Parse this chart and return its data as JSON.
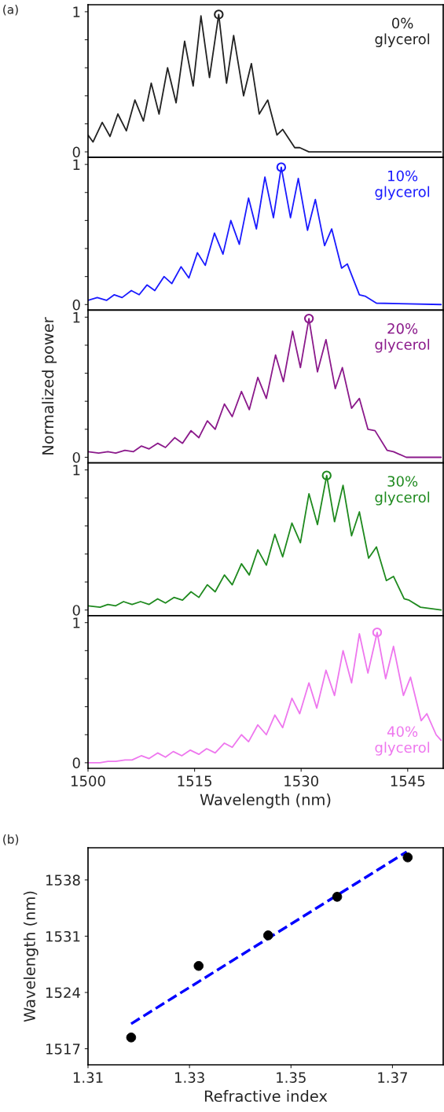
{
  "chart_data": [
    {
      "type": "line",
      "annotations": [
        "(a)"
      ],
      "xlim": [
        1500,
        1550
      ],
      "ylim": [
        -0.04,
        1.05
      ],
      "yticks": [
        0,
        {
          "value": 0.2,
          "label": null
        },
        {
          "value": 0.4,
          "label": null
        },
        {
          "value": 0.6,
          "label": null
        },
        {
          "value": 0.8,
          "label": null
        },
        1
      ],
      "tick_labels": "y",
      "legend": "top right",
      "series": [
        {
          "name": "0%\nglycerol",
          "color": "#222222",
          "x": [
            1500,
            1500.7,
            1502.0,
            1503.1,
            1504.2,
            1505.4,
            1506.6,
            1507.8,
            1508.9,
            1510.0,
            1511.2,
            1512.4,
            1513.6,
            1514.8,
            1515.9,
            1517.1,
            1518.4,
            1519.5,
            1520.5,
            1521.9,
            1523.0,
            1524.1,
            1525.3,
            1526.6,
            1527.4,
            1529.1,
            1529.8,
            1531.1,
            1549.7
          ],
          "values": [
            0.12,
            0.07,
            0.21,
            0.11,
            0.27,
            0.15,
            0.37,
            0.22,
            0.49,
            0.27,
            0.6,
            0.35,
            0.79,
            0.47,
            0.97,
            0.53,
            0.98,
            0.49,
            0.83,
            0.4,
            0.63,
            0.27,
            0.37,
            0.12,
            0.16,
            0.03,
            0.03,
            0,
            0
          ]
        },
        {
          "type": "scatter",
          "marker": "circle",
          "color": "#222222",
          "x": [
            1518.4
          ],
          "values": [
            0.98
          ]
        }
      ]
    },
    {
      "type": "line",
      "xlim": [
        1500,
        1550
      ],
      "ylim": [
        -0.04,
        1.05
      ],
      "yticks": [
        0,
        {
          "value": 0.2,
          "label": null
        },
        {
          "value": 0.4,
          "label": null
        },
        {
          "value": 0.6,
          "label": null
        },
        {
          "value": 0.8,
          "label": null
        },
        1
      ],
      "tick_labels": "y",
      "legend": "top right",
      "series": [
        {
          "name": "10%\nglycerol",
          "color": "#1a1aff",
          "x": [
            1500,
            1501.3,
            1502.6,
            1503.7,
            1504.8,
            1506.1,
            1507.2,
            1508.3,
            1509.4,
            1510.7,
            1511.8,
            1513.1,
            1514.2,
            1515.4,
            1516.5,
            1517.8,
            1519.0,
            1520.1,
            1521.3,
            1522.6,
            1523.7,
            1524.9,
            1526.1,
            1527.2,
            1528.5,
            1529.6,
            1530.9,
            1532.0,
            1533.3,
            1534.3,
            1535.7,
            1536.5,
            1538.2,
            1539.0,
            1540.6,
            1549.7
          ],
          "values": [
            0.03,
            0.05,
            0.03,
            0.07,
            0.05,
            0.1,
            0.07,
            0.14,
            0.1,
            0.2,
            0.15,
            0.27,
            0.19,
            0.37,
            0.28,
            0.51,
            0.36,
            0.6,
            0.43,
            0.76,
            0.54,
            0.91,
            0.62,
            0.98,
            0.62,
            0.9,
            0.53,
            0.75,
            0.42,
            0.54,
            0.26,
            0.29,
            0.07,
            0.06,
            0.01,
            0
          ]
        },
        {
          "type": "scatter",
          "marker": "circle",
          "color": "#1a1aff",
          "x": [
            1527.2
          ],
          "values": [
            0.98
          ]
        }
      ]
    },
    {
      "type": "line",
      "ylabel": "Normalized power",
      "xlim": [
        1500,
        1550
      ],
      "ylim": [
        -0.04,
        1.05
      ],
      "yticks": [
        0,
        {
          "value": 0.2,
          "label": null
        },
        {
          "value": 0.4,
          "label": null
        },
        {
          "value": 0.6,
          "label": null
        },
        {
          "value": 0.8,
          "label": null
        },
        1
      ],
      "tick_labels": "y",
      "legend": "top right",
      "series": [
        {
          "name": "20%\nglycerol",
          "color": "#8b1a8b",
          "x": [
            1500,
            1501.5,
            1502.8,
            1503.9,
            1505.2,
            1506.4,
            1507.5,
            1508.6,
            1509.8,
            1510.9,
            1512.2,
            1513.3,
            1514.5,
            1515.6,
            1516.8,
            1517.9,
            1519.2,
            1520.3,
            1521.6,
            1522.7,
            1523.9,
            1525.1,
            1526.4,
            1527.5,
            1528.8,
            1529.9,
            1531.1,
            1532.3,
            1533.5,
            1534.8,
            1535.8,
            1537.1,
            1538.2,
            1539.4,
            1540.4,
            1542.1,
            1543.0,
            1544.8,
            1549.7
          ],
          "values": [
            0.04,
            0.03,
            0.04,
            0.03,
            0.05,
            0.04,
            0.08,
            0.06,
            0.1,
            0.07,
            0.14,
            0.1,
            0.19,
            0.14,
            0.26,
            0.2,
            0.38,
            0.29,
            0.47,
            0.34,
            0.57,
            0.42,
            0.73,
            0.54,
            0.9,
            0.64,
            0.99,
            0.61,
            0.84,
            0.49,
            0.64,
            0.35,
            0.42,
            0.2,
            0.19,
            0.05,
            0.04,
            0,
            0
          ]
        },
        {
          "type": "scatter",
          "marker": "circle",
          "color": "#8b1a8b",
          "x": [
            1531.1
          ],
          "values": [
            0.99
          ]
        }
      ]
    },
    {
      "type": "line",
      "xlim": [
        1500,
        1550
      ],
      "ylim": [
        -0.04,
        1.05
      ],
      "yticks": [
        0,
        {
          "value": 0.2,
          "label": null
        },
        {
          "value": 0.4,
          "label": null
        },
        {
          "value": 0.6,
          "label": null
        },
        {
          "value": 0.8,
          "label": null
        },
        1
      ],
      "tick_labels": "y",
      "legend": "top right",
      "series": [
        {
          "name": "30%\nglycerol",
          "color": "#1f8a1f",
          "x": [
            1500,
            1501.7,
            1502.8,
            1503.9,
            1505.0,
            1506.2,
            1507.4,
            1508.6,
            1509.8,
            1510.9,
            1512.1,
            1513.3,
            1514.5,
            1515.6,
            1516.8,
            1517.9,
            1519.2,
            1520.3,
            1521.6,
            1522.7,
            1523.9,
            1525.1,
            1526.3,
            1527.4,
            1528.7,
            1529.9,
            1531.1,
            1532.3,
            1533.6,
            1534.7,
            1535.9,
            1537.1,
            1538.2,
            1539.5,
            1540.6,
            1542.0,
            1543.0,
            1544.5,
            1545.2,
            1546.8,
            1549.7
          ],
          "values": [
            0.03,
            0.02,
            0.04,
            0.03,
            0.06,
            0.04,
            0.06,
            0.04,
            0.08,
            0.05,
            0.09,
            0.07,
            0.13,
            0.09,
            0.18,
            0.13,
            0.25,
            0.18,
            0.33,
            0.25,
            0.43,
            0.32,
            0.54,
            0.38,
            0.62,
            0.48,
            0.83,
            0.61,
            0.96,
            0.63,
            0.89,
            0.53,
            0.7,
            0.37,
            0.45,
            0.21,
            0.24,
            0.08,
            0.07,
            0.02,
            0
          ]
        },
        {
          "type": "scatter",
          "marker": "circle",
          "color": "#1f8a1f",
          "x": [
            1533.6
          ],
          "values": [
            0.96
          ]
        }
      ]
    },
    {
      "type": "line",
      "xlabel": "Wavelength (nm)",
      "xlim": [
        1500,
        1550
      ],
      "xticks": [
        1500,
        1515,
        1530,
        1545
      ],
      "ylim": [
        -0.04,
        1.05
      ],
      "yticks": [
        0,
        {
          "value": 0.2,
          "label": null
        },
        {
          "value": 0.4,
          "label": null
        },
        {
          "value": 0.6,
          "label": null
        },
        {
          "value": 0.8,
          "label": null
        },
        1
      ],
      "legend": "bottom right",
      "series": [
        {
          "name": "40%\nglycerol",
          "color": "#ee77ee",
          "x": [
            1500,
            1501.7,
            1502.8,
            1503.9,
            1505.2,
            1506.2,
            1507.5,
            1508.6,
            1509.8,
            1510.9,
            1512.0,
            1513.2,
            1514.4,
            1515.6,
            1516.7,
            1517.9,
            1519.2,
            1520.3,
            1521.6,
            1522.6,
            1523.9,
            1525.1,
            1526.3,
            1527.4,
            1528.7,
            1529.8,
            1531.1,
            1532.2,
            1533.5,
            1534.7,
            1535.9,
            1537.1,
            1538.2,
            1539.4,
            1540.7,
            1541.9,
            1543.0,
            1544.4,
            1545.4,
            1546.9,
            1547.7,
            1549.0,
            1549.7
          ],
          "values": [
            0,
            0,
            0.01,
            0.01,
            0.02,
            0.02,
            0.05,
            0.03,
            0.07,
            0.04,
            0.08,
            0.05,
            0.09,
            0.06,
            0.1,
            0.07,
            0.14,
            0.11,
            0.2,
            0.15,
            0.27,
            0.2,
            0.34,
            0.25,
            0.46,
            0.35,
            0.57,
            0.39,
            0.66,
            0.48,
            0.8,
            0.57,
            0.92,
            0.64,
            0.93,
            0.6,
            0.83,
            0.48,
            0.61,
            0.3,
            0.35,
            0.2,
            0.16
          ]
        },
        {
          "type": "scatter",
          "marker": "circle",
          "color": "#ee77ee",
          "x": [
            1540.7
          ],
          "values": [
            0.93
          ]
        }
      ]
    },
    {
      "type": "scatter",
      "annotations": [
        "(b)"
      ],
      "xlabel": "Refractive index",
      "ylabel": "Wavelength (nm)",
      "xlim": [
        1.31,
        1.38
      ],
      "xticks": [
        1.31,
        1.33,
        1.35,
        1.37
      ],
      "ylim": [
        1515,
        1542
      ],
      "yticks": [
        1517,
        1524,
        1531,
        1538
      ],
      "series": [
        {
          "color": "#000000",
          "marker": "circle",
          "x": [
            1.3185,
            1.3318,
            1.3455,
            1.3591,
            1.373
          ],
          "values": [
            1518.4,
            1527.3,
            1531.1,
            1535.9,
            1540.8
          ]
        },
        {
          "type": "line",
          "line_style": "dashed",
          "color": "#0000ff",
          "x": [
            1.3185,
            1.3728
          ],
          "values": [
            1520.1,
            1541.5
          ]
        }
      ]
    }
  ]
}
